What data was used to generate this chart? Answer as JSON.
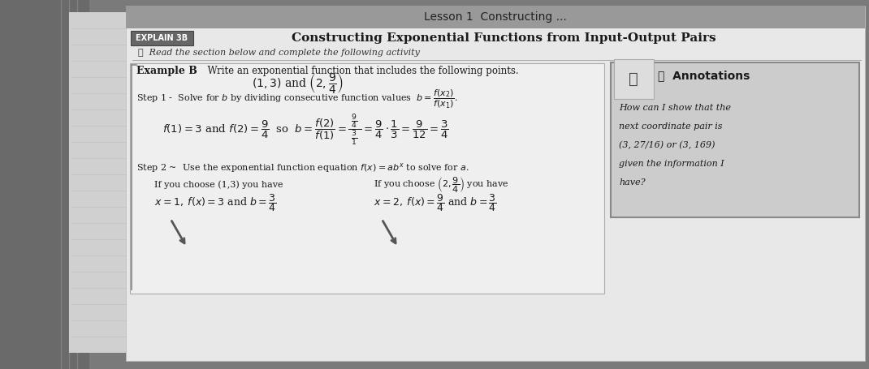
{
  "outer_bg": "#7a7a7a",
  "page_bg": "#e8e8e8",
  "content_bg": "#f0f0f0",
  "top_banner_color": "#a0a0a0",
  "top_banner_text": "Lesson 1  Constructing ...",
  "explain_label": "EXPLAIN 3B",
  "explain_bg": "#666666",
  "explain_color": "#ffffff",
  "main_title": "Constructing Exponential Functions from Input-Output Pairs",
  "subtitle": "✓  Read the section below and complete the following activity",
  "example_line": "Example B    Write an exponential function that includes the following points.",
  "annot_title": "Annotations",
  "annot_line1": "How can I show that the",
  "annot_line2": "next coordinate pair is",
  "annot_line3": "(3, 27/16) or (3, 169)",
  "annot_line4": "given the information I",
  "annot_line5": "have?",
  "annot_bg": "#cccccc",
  "annot_border": "#888888",
  "left_notebook_color": "#b8b8b8",
  "left_spine_color": "#c8c8c8",
  "line_color": "#999999",
  "text_color": "#1a1a1a",
  "step_color": "#1a1a1a"
}
